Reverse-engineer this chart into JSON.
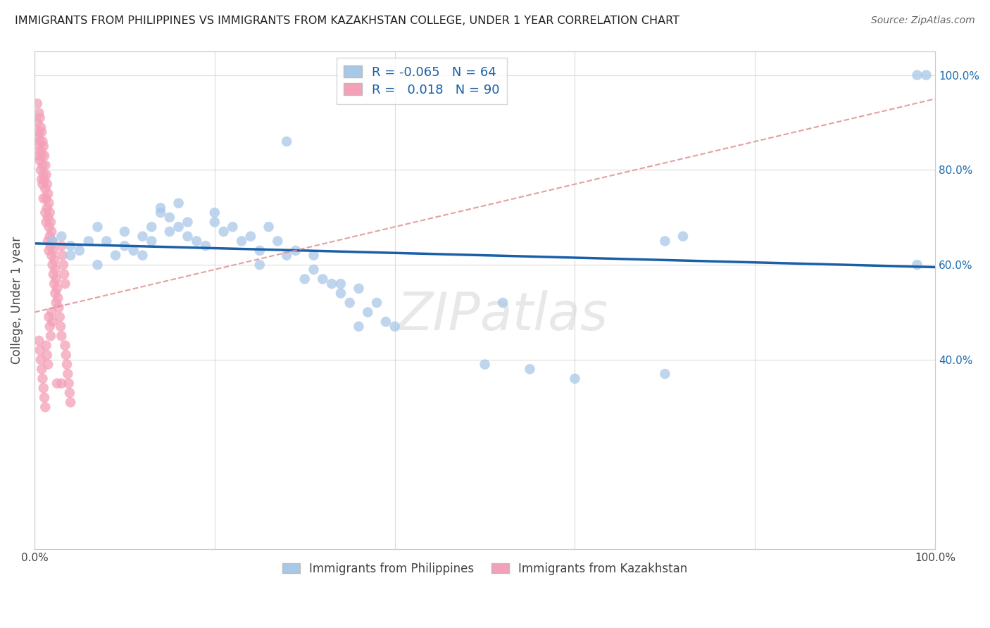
{
  "title": "IMMIGRANTS FROM PHILIPPINES VS IMMIGRANTS FROM KAZAKHSTAN COLLEGE, UNDER 1 YEAR CORRELATION CHART",
  "source": "Source: ZipAtlas.com",
  "ylabel": "College, Under 1 year",
  "legend_bottom": [
    "Immigrants from Philippines",
    "Immigrants from Kazakhstan"
  ],
  "r_philippines": -0.065,
  "n_philippines": 64,
  "r_kazakhstan": 0.018,
  "n_kazakhstan": 90,
  "philippines_color": "#a8c8e8",
  "kazakhstan_color": "#f4a0b8",
  "philippines_line_color": "#1a5fa8",
  "kazakhstan_line_color": "#e09090",
  "phil_line_x0": 0.0,
  "phil_line_y0": 0.645,
  "phil_line_x1": 1.0,
  "phil_line_y1": 0.595,
  "kaz_line_x0": 0.0,
  "kaz_line_y0": 0.5,
  "kaz_line_x1": 1.0,
  "kaz_line_y1": 0.95,
  "xlim": [
    0,
    1
  ],
  "ylim": [
    0,
    1.05
  ],
  "x_ticks": [
    0.0,
    0.2,
    0.4,
    0.6,
    0.8,
    1.0
  ],
  "x_tick_labels": [
    "0.0%",
    "",
    "",
    "",
    "",
    "100.0%"
  ],
  "y_ticks": [
    0.4,
    0.6,
    0.8,
    1.0
  ],
  "y_tick_labels_right": [
    "40.0%",
    "60.0%",
    "80.0%",
    "100.0%"
  ],
  "watermark": "ZIPatlas",
  "background_color": "#ffffff",
  "grid_color": "#d8d8d8",
  "philippines_scatter_x": [
    0.02,
    0.03,
    0.04,
    0.04,
    0.05,
    0.06,
    0.07,
    0.07,
    0.08,
    0.09,
    0.1,
    0.1,
    0.11,
    0.12,
    0.12,
    0.13,
    0.13,
    0.14,
    0.14,
    0.15,
    0.15,
    0.16,
    0.16,
    0.17,
    0.17,
    0.18,
    0.19,
    0.2,
    0.2,
    0.21,
    0.22,
    0.23,
    0.24,
    0.25,
    0.25,
    0.26,
    0.27,
    0.28,
    0.29,
    0.3,
    0.31,
    0.31,
    0.32,
    0.33,
    0.34,
    0.34,
    0.35,
    0.36,
    0.37,
    0.38,
    0.39,
    0.4,
    0.28,
    0.52,
    0.55,
    0.6,
    0.7,
    0.72,
    0.5,
    0.36,
    0.7,
    0.98,
    0.98,
    0.99
  ],
  "philippines_scatter_y": [
    0.65,
    0.66,
    0.62,
    0.64,
    0.63,
    0.65,
    0.6,
    0.68,
    0.65,
    0.62,
    0.64,
    0.67,
    0.63,
    0.66,
    0.62,
    0.68,
    0.65,
    0.71,
    0.72,
    0.7,
    0.67,
    0.73,
    0.68,
    0.69,
    0.66,
    0.65,
    0.64,
    0.71,
    0.69,
    0.67,
    0.68,
    0.65,
    0.66,
    0.63,
    0.6,
    0.68,
    0.65,
    0.62,
    0.63,
    0.57,
    0.59,
    0.62,
    0.57,
    0.56,
    0.54,
    0.56,
    0.52,
    0.55,
    0.5,
    0.52,
    0.48,
    0.47,
    0.86,
    0.52,
    0.38,
    0.36,
    0.37,
    0.66,
    0.39,
    0.47,
    0.65,
    0.6,
    1.0,
    1.0
  ],
  "kazakhstan_scatter_x": [
    0.003,
    0.003,
    0.004,
    0.004,
    0.005,
    0.005,
    0.005,
    0.006,
    0.006,
    0.006,
    0.007,
    0.007,
    0.007,
    0.008,
    0.008,
    0.008,
    0.009,
    0.009,
    0.009,
    0.01,
    0.01,
    0.01,
    0.011,
    0.011,
    0.012,
    0.012,
    0.012,
    0.013,
    0.013,
    0.013,
    0.014,
    0.014,
    0.015,
    0.015,
    0.015,
    0.016,
    0.016,
    0.016,
    0.017,
    0.017,
    0.018,
    0.018,
    0.019,
    0.019,
    0.02,
    0.02,
    0.021,
    0.021,
    0.022,
    0.022,
    0.023,
    0.023,
    0.024,
    0.024,
    0.025,
    0.026,
    0.027,
    0.028,
    0.029,
    0.03,
    0.03,
    0.031,
    0.032,
    0.033,
    0.034,
    0.034,
    0.035,
    0.036,
    0.037,
    0.038,
    0.039,
    0.04,
    0.005,
    0.006,
    0.007,
    0.008,
    0.009,
    0.01,
    0.011,
    0.012,
    0.013,
    0.014,
    0.015,
    0.016,
    0.017,
    0.018,
    0.019,
    0.02,
    0.025,
    0.03
  ],
  "kazakhstan_scatter_y": [
    0.94,
    0.9,
    0.87,
    0.83,
    0.92,
    0.88,
    0.85,
    0.91,
    0.86,
    0.82,
    0.89,
    0.84,
    0.8,
    0.88,
    0.83,
    0.78,
    0.86,
    0.81,
    0.77,
    0.85,
    0.79,
    0.74,
    0.83,
    0.78,
    0.81,
    0.76,
    0.71,
    0.79,
    0.74,
    0.69,
    0.77,
    0.72,
    0.75,
    0.7,
    0.65,
    0.73,
    0.68,
    0.63,
    0.71,
    0.66,
    0.69,
    0.64,
    0.67,
    0.62,
    0.65,
    0.6,
    0.63,
    0.58,
    0.61,
    0.56,
    0.59,
    0.54,
    0.57,
    0.52,
    0.55,
    0.53,
    0.51,
    0.49,
    0.47,
    0.45,
    0.64,
    0.62,
    0.6,
    0.58,
    0.43,
    0.56,
    0.41,
    0.39,
    0.37,
    0.35,
    0.33,
    0.31,
    0.44,
    0.42,
    0.4,
    0.38,
    0.36,
    0.34,
    0.32,
    0.3,
    0.43,
    0.41,
    0.39,
    0.49,
    0.47,
    0.45,
    0.5,
    0.48,
    0.35,
    0.35
  ]
}
